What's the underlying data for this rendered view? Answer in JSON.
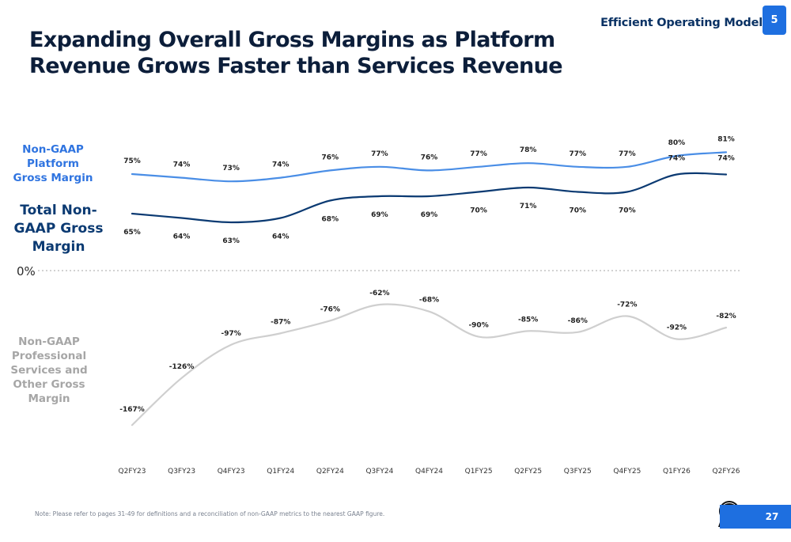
{
  "header": {
    "section_title": "Efficient Operating Model",
    "section_number": "5",
    "title": "Expanding Overall Gross Margins as Platform Revenue Grows Faster than Services Revenue"
  },
  "labels": {
    "platform": "Non-GAAP Platform Gross Margin",
    "total": "Total Non-GAAP Gross Margin",
    "services": "Non-GAAP Professional Services and Other Gross Margin",
    "zero": "0%"
  },
  "footer": {
    "note": "Note: Please refer to pages 31-49 for definitions and a reconciliation of non-GAAP metrics to the nearest GAAP figure.",
    "page_number": "27"
  },
  "colors": {
    "platform": "#4a8ee6",
    "total": "#0b3a72",
    "services": "#cfcfcf",
    "accent": "#1e6fe0"
  },
  "chart_data": {
    "type": "line",
    "categories": [
      "Q2FY23",
      "Q3FY23",
      "Q4FY23",
      "Q1FY24",
      "Q2FY24",
      "Q3FY24",
      "Q4FY24",
      "Q1FY25",
      "Q2FY25",
      "Q3FY25",
      "Q4FY25",
      "Q1FY26",
      "Q2FY26"
    ],
    "series": [
      {
        "name": "Non-GAAP Platform Gross Margin",
        "key": "platform",
        "values": [
          75,
          74,
          73,
          74,
          76,
          77,
          76,
          77,
          78,
          77,
          77,
          80,
          81
        ],
        "labels": [
          "75%",
          "74%",
          "73%",
          "74%",
          "76%",
          "77%",
          "76%",
          "77%",
          "78%",
          "77%",
          "77%",
          "80%",
          "81%"
        ]
      },
      {
        "name": "Total Non-GAAP Gross Margin",
        "key": "total",
        "values": [
          65,
          64,
          63,
          64,
          68,
          69,
          69,
          70,
          71,
          70,
          70,
          74,
          74
        ],
        "labels": [
          "65%",
          "64%",
          "63%",
          "64%",
          "68%",
          "69%",
          "69%",
          "70%",
          "71%",
          "70%",
          "70%",
          "74%",
          "74%"
        ]
      },
      {
        "name": "Non-GAAP Professional Services and Other Gross Margin",
        "key": "services",
        "values": [
          -167,
          -126,
          -97,
          -87,
          -76,
          -62,
          -68,
          -90,
          -85,
          -86,
          -72,
          -92,
          -82
        ],
        "labels": [
          "-167%",
          "-126%",
          "-97%",
          "-87%",
          "-76%",
          "-62%",
          "-68%",
          "-90%",
          "-85%",
          "-86%",
          "-72%",
          "-92%",
          "-82%"
        ]
      }
    ],
    "zero_line": "0%",
    "grid": false,
    "legend": "left"
  }
}
